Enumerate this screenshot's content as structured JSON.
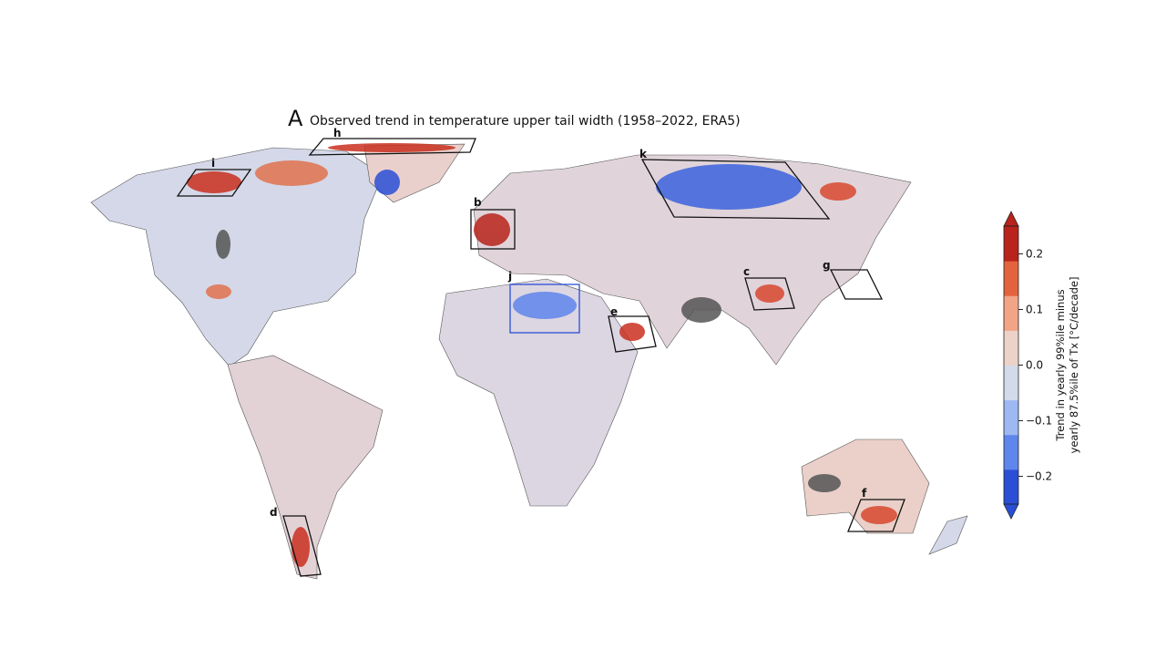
{
  "panel_label": "A",
  "title": "Observed trend in temperature upper tail width (1958–2022, ERA5)",
  "regions": [
    {
      "label": "h"
    },
    {
      "label": "i"
    },
    {
      "label": "b"
    },
    {
      "label": "k"
    },
    {
      "label": "c"
    },
    {
      "label": "g"
    },
    {
      "label": "j"
    },
    {
      "label": "e"
    },
    {
      "label": "d"
    },
    {
      "label": "f"
    }
  ],
  "colorbar": {
    "label_lines": [
      "Trend in yearly 99%ile minus",
      "yearly 87.5%ile of Tx [°C/decade]"
    ],
    "lim": [
      -0.25,
      0.25
    ],
    "ticks": [
      {
        "value": -0.2,
        "label": "−0.2"
      },
      {
        "value": -0.1,
        "label": "−0.1"
      },
      {
        "value": 0,
        "label": "0.0"
      },
      0.1,
      0.2
    ],
    "colors": [
      "#2a4fd6",
      "#5f86ec",
      "#9db8f2",
      "#d3dbea",
      "#ecd2c8",
      "#f2a586",
      "#e4633f",
      "#b8231b"
    ]
  }
}
